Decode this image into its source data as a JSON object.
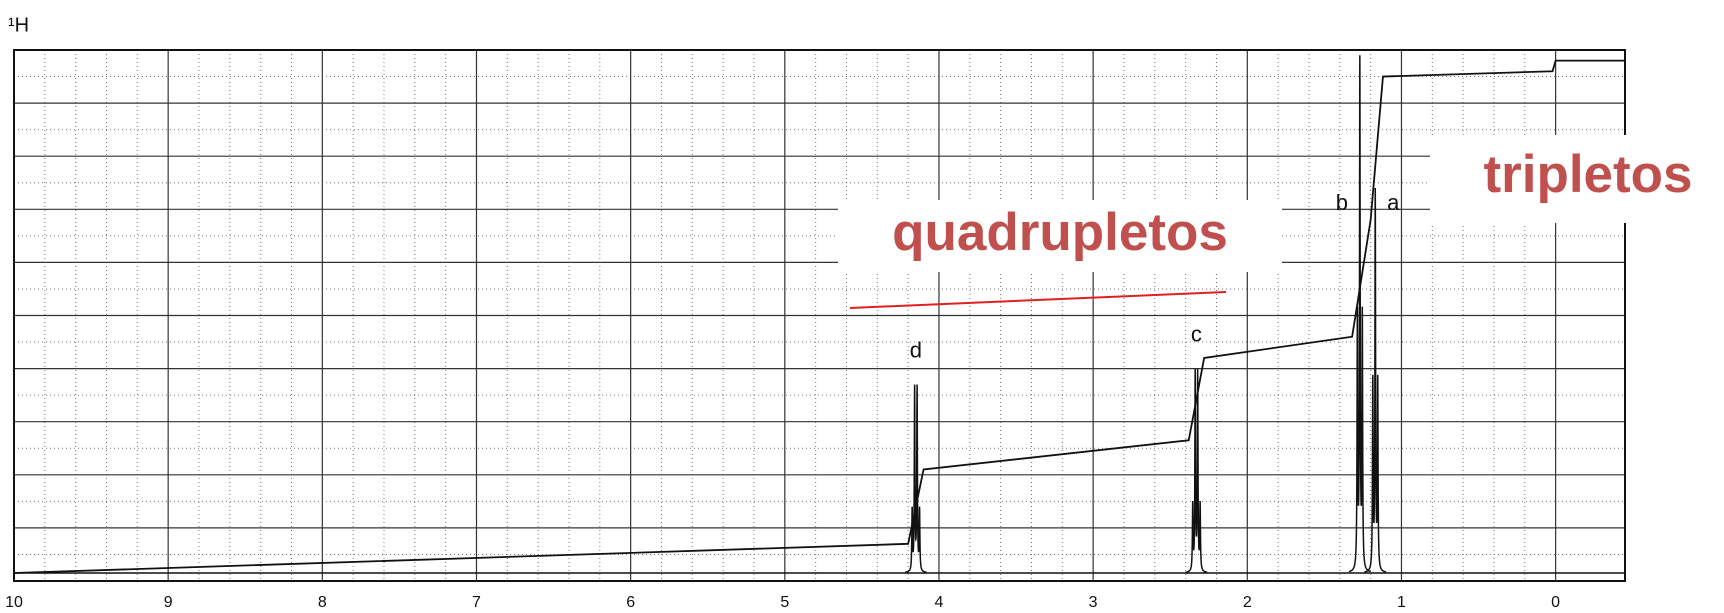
{
  "chart_data": {
    "type": "nmr",
    "title": "¹H",
    "xlim": [
      10,
      -0.45
    ],
    "xticks": [
      10,
      9,
      8,
      7,
      6,
      5,
      4,
      3,
      2,
      1,
      0
    ],
    "ylim": [
      0,
      100
    ],
    "yticks": [
      0,
      10,
      20,
      30,
      40,
      50,
      60,
      70,
      80,
      90,
      100
    ],
    "grid": true,
    "color": "#111111",
    "baseline": 1.5,
    "peaks": [
      {
        "label": "d",
        "x": 4.15,
        "height": 37,
        "lines": 4
      },
      {
        "label": "c",
        "x": 2.33,
        "height": 40,
        "lines": 4
      },
      {
        "label": "b",
        "x": 1.27,
        "height": 99,
        "lines": 3
      },
      {
        "label": "a",
        "x": 1.17,
        "height": 74,
        "lines": 3
      }
    ],
    "integral": {
      "x": [
        10,
        4.2,
        4.1,
        2.38,
        2.28,
        1.32,
        1.2,
        1.12,
        0.02,
        0.0,
        -0.45
      ],
      "y": [
        1.5,
        7,
        21,
        26.5,
        42,
        46,
        68,
        95,
        96,
        98,
        98
      ]
    },
    "annotations": [
      "quadrupletos",
      "tripletos"
    ]
  }
}
